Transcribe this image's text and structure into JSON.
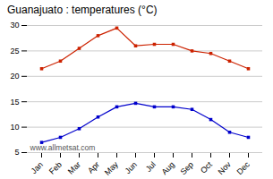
{
  "chart_data": {
    "type": "line",
    "title": "Guanajuato : temperatures (°C)",
    "categories": [
      "Jan",
      "Feb",
      "Mar",
      "Apr",
      "May",
      "Jun",
      "Jul",
      "Aug",
      "Sep",
      "Oct",
      "Nov",
      "Dec"
    ],
    "series": [
      {
        "color": "#cc2200",
        "marker": "square",
        "values": [
          21.5,
          23.0,
          25.5,
          28.0,
          29.5,
          26.0,
          26.3,
          26.3,
          25.0,
          24.5,
          23.0,
          21.5
        ]
      },
      {
        "color": "#0000cc",
        "marker": "square",
        "values": [
          7.0,
          8.0,
          9.7,
          12.0,
          14.0,
          14.7,
          14.0,
          14.0,
          13.5,
          11.5,
          9.0,
          8.0
        ]
      }
    ],
    "ylim": [
      5,
      30
    ],
    "yticks": [
      5,
      10,
      15,
      20,
      25,
      30
    ],
    "grid": true,
    "annotations": [
      "www.allmetsat.com"
    ]
  }
}
